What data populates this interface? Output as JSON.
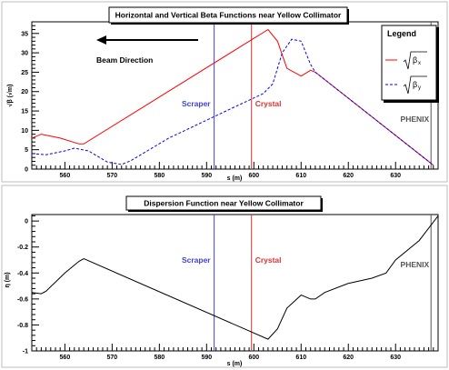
{
  "chart_data": [
    {
      "type": "line",
      "title": "Horizontal and Vertical Beta Functions near Yellow Collimator",
      "xlabel": "s (m)",
      "ylabel": "√β (√m)",
      "xlim": [
        553,
        639
      ],
      "ylim": [
        0,
        38
      ],
      "xticks": [
        560,
        570,
        580,
        590,
        600,
        610,
        620,
        630
      ],
      "yticks": [
        0,
        5,
        10,
        15,
        20,
        25,
        30,
        35
      ],
      "grid": false,
      "legend": {
        "title": "Legend",
        "placement": "top-right",
        "entries": [
          {
            "symbol": "β",
            "subscript": "x",
            "color": "#ff0000",
            "dash": "solid"
          },
          {
            "symbol": "β",
            "subscript": "y",
            "color": "#0000ff",
            "dash": "dashed"
          }
        ]
      },
      "series": [
        {
          "color": "#ff0000",
          "dash": "solid",
          "x": [
            553,
            555,
            559,
            563,
            564,
            603,
            605,
            607,
            610,
            612,
            613,
            638
          ],
          "y": [
            8,
            9,
            8,
            6.5,
            6.5,
            36,
            33,
            26,
            24,
            25.5,
            25,
            1
          ]
        },
        {
          "color": "#0000ff",
          "dash": "dashed",
          "x": [
            553,
            556,
            560,
            562,
            565,
            569,
            572,
            574,
            582,
            595,
            602,
            604,
            606,
            608,
            610,
            611,
            612,
            613,
            638
          ],
          "y": [
            4,
            3.7,
            4.7,
            5.4,
            4.7,
            1.8,
            1.2,
            2.2,
            8,
            15.5,
            19.5,
            22,
            30,
            33.5,
            33,
            30,
            27,
            25,
            1
          ]
        }
      ],
      "markers": [
        {
          "x": 591.6,
          "label": "Scraper",
          "color": "#4040e0"
        },
        {
          "x": 599.5,
          "label": "Crystal",
          "color": "#e03030"
        },
        {
          "x": 637.5,
          "label": "PHENIX",
          "color": "#555555"
        }
      ],
      "annotations": [
        {
          "text": "Beam Direction",
          "arrow": "left"
        }
      ]
    },
    {
      "type": "line",
      "title": "Dispersion Function near Yellow Collimator",
      "xlabel": "s (m)",
      "ylabel": "η (m)",
      "xlim": [
        553,
        639
      ],
      "ylim": [
        -1,
        0.05
      ],
      "xticks": [
        560,
        570,
        580,
        590,
        600,
        610,
        620,
        630
      ],
      "yticks": [
        -1,
        -0.8,
        -0.6,
        -0.4,
        -0.2,
        0
      ],
      "ytick_labels": [
        "-1",
        "-0.8",
        "-0.6",
        "-0.4",
        "-0.2",
        "0"
      ],
      "grid": false,
      "series": [
        {
          "color": "#000000",
          "dash": "solid",
          "x": [
            553,
            555,
            556,
            560,
            563,
            564,
            603,
            605,
            607,
            610,
            612,
            613,
            615,
            620,
            625,
            628,
            630,
            635,
            639
          ],
          "y": [
            -0.55,
            -0.56,
            -0.54,
            -0.4,
            -0.31,
            -0.29,
            -0.91,
            -0.83,
            -0.67,
            -0.57,
            -0.6,
            -0.6,
            -0.55,
            -0.48,
            -0.44,
            -0.4,
            -0.3,
            -0.15,
            0.04
          ]
        }
      ],
      "markers": [
        {
          "x": 591.6,
          "label": "Scraper",
          "color": "#4040e0"
        },
        {
          "x": 599.5,
          "label": "Crystal",
          "color": "#e03030"
        },
        {
          "x": 637.5,
          "label": "PHENIX",
          "color": "#555555"
        }
      ]
    }
  ]
}
